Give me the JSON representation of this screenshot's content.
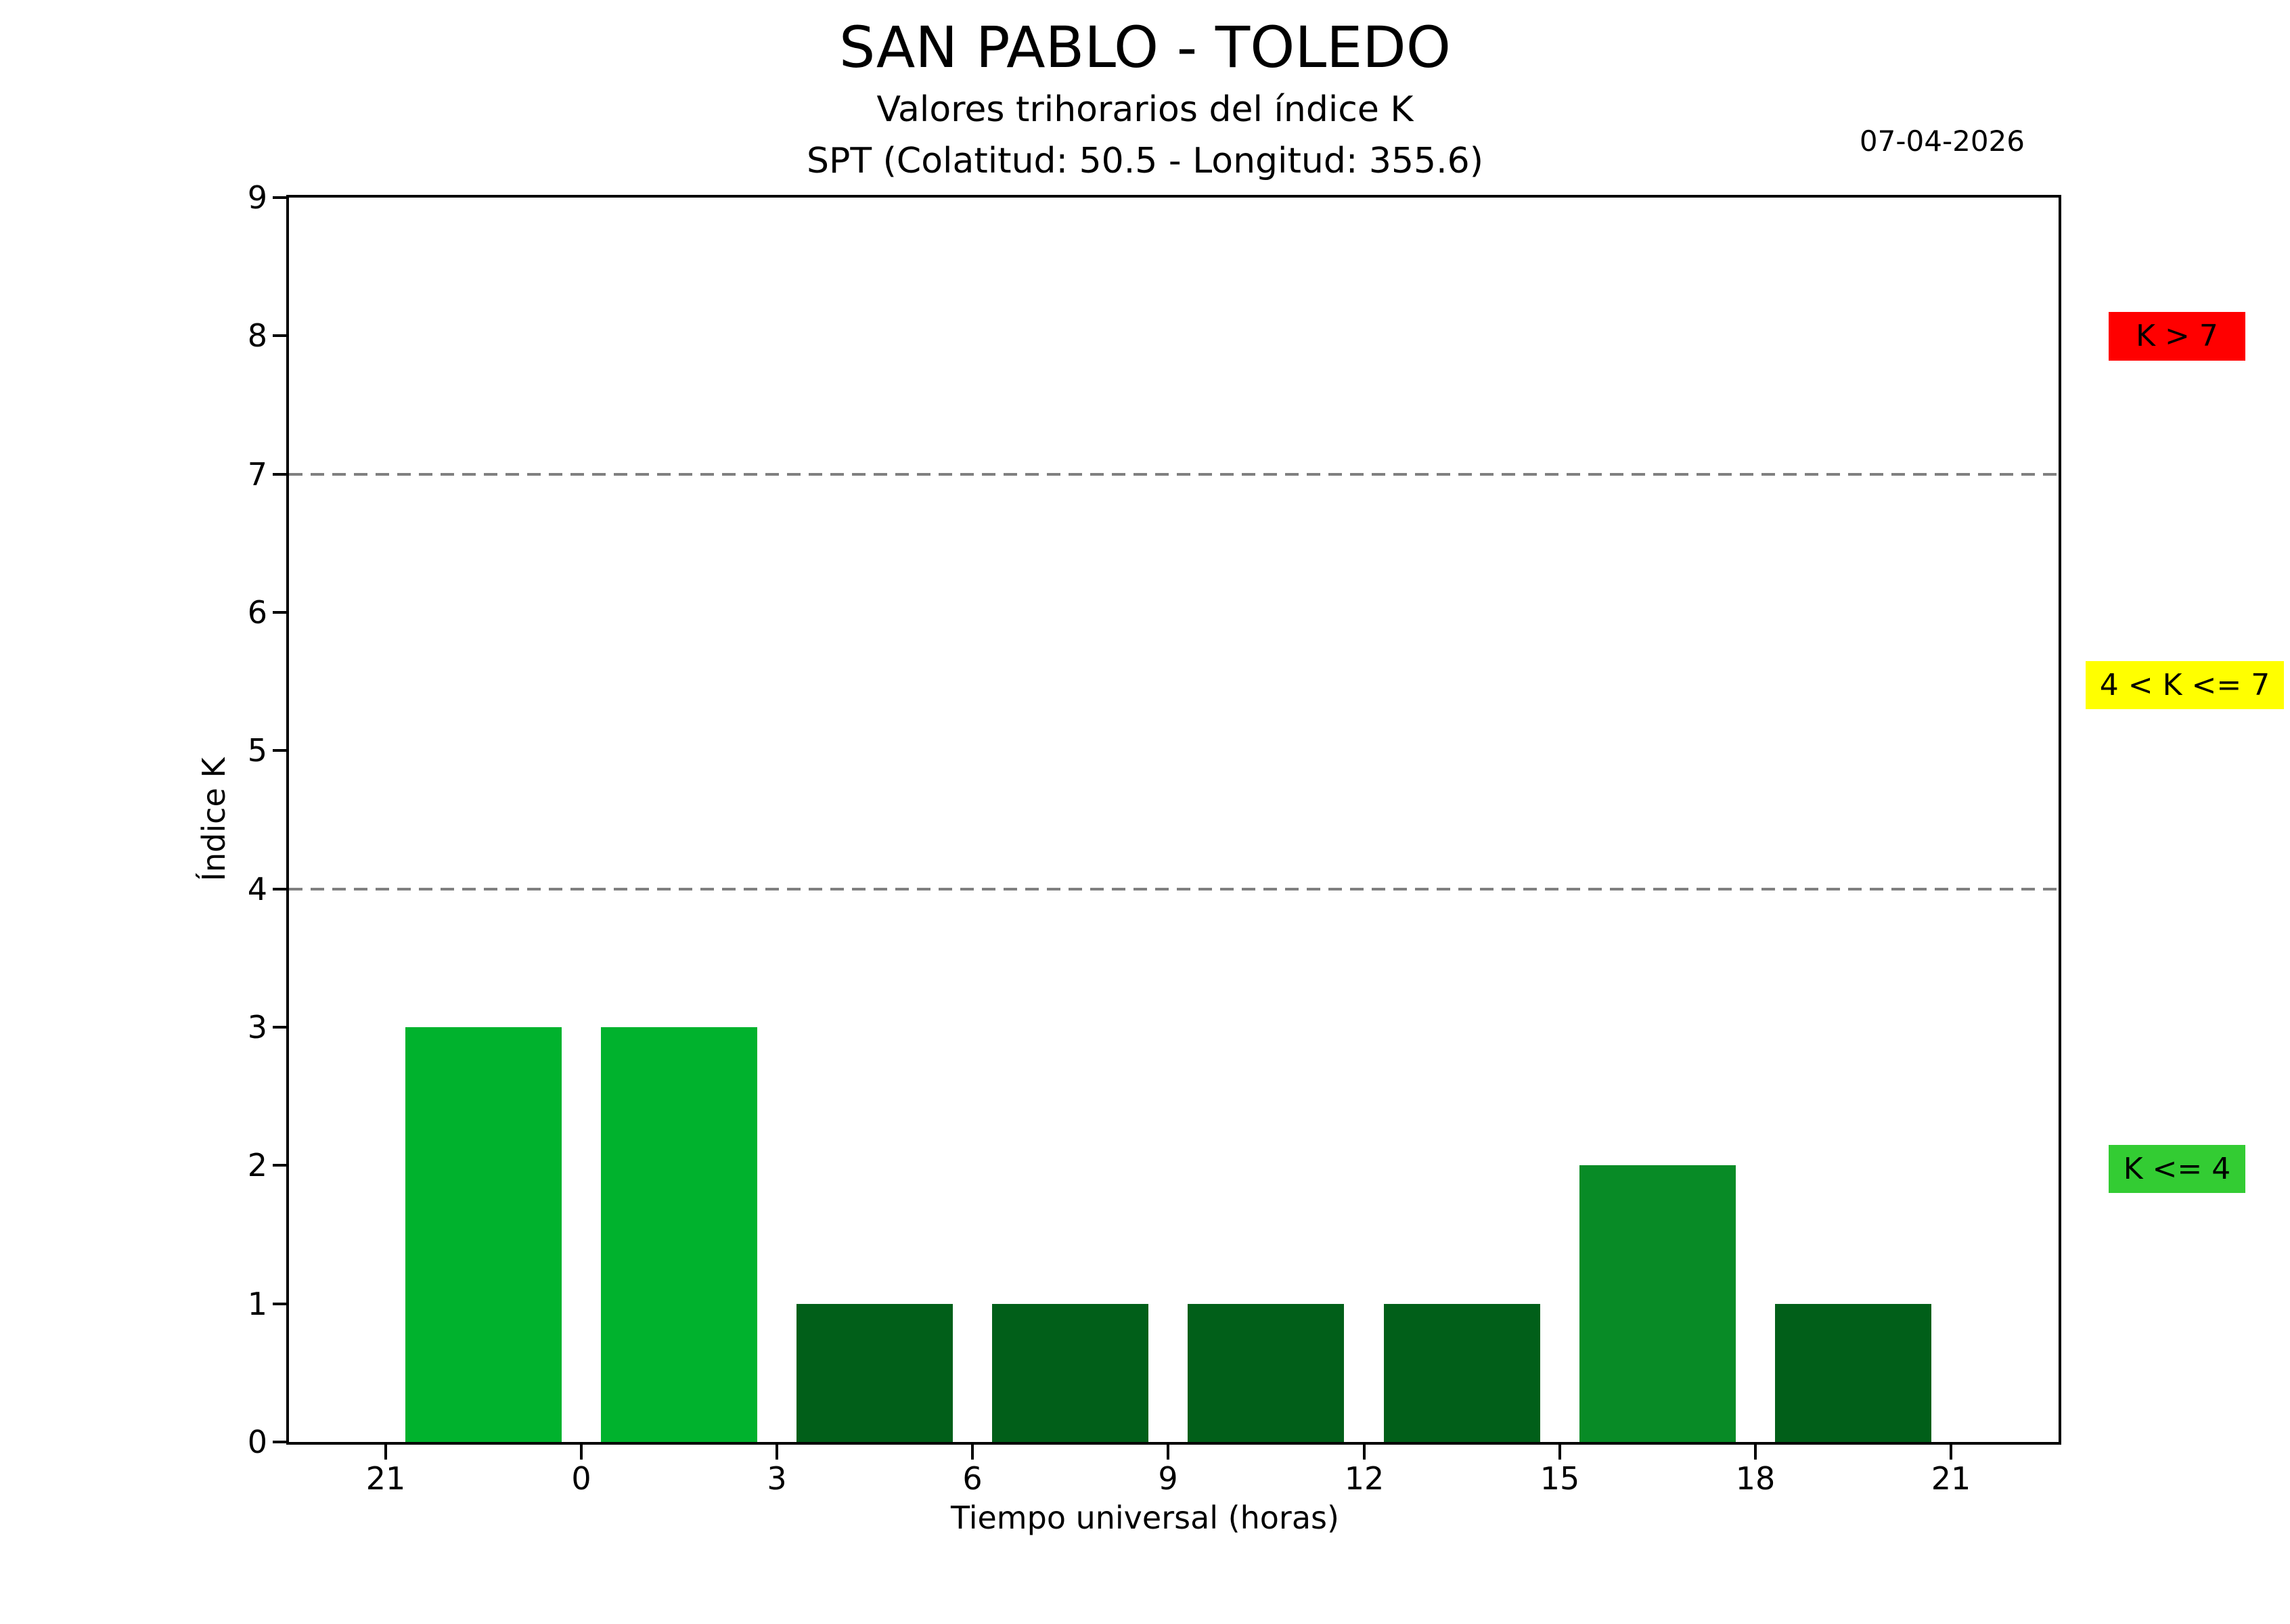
{
  "header": {
    "date": "07-04-2026"
  },
  "chart_data": {
    "type": "bar",
    "title": "SAN PABLO - TOLEDO",
    "subtitle": "Valores trihorarios del índice K",
    "station_info": "SPT (Colatitud: 50.5 - Longitud: 355.6)",
    "date": "07-04-2026",
    "xlabel": "Tiempo universal (horas)",
    "ylabel": "Índice K",
    "ylim": [
      0,
      9
    ],
    "y_ticks": [
      0,
      1,
      2,
      3,
      4,
      5,
      6,
      7,
      8,
      9
    ],
    "x_tick_labels": [
      "21",
      "0",
      "3",
      "6",
      "9",
      "12",
      "15",
      "18",
      "21"
    ],
    "categories": [
      "21-00",
      "00-03",
      "03-06",
      "06-09",
      "09-12",
      "12-15",
      "15-18",
      "18-21"
    ],
    "values": [
      3,
      3,
      1,
      1,
      1,
      1,
      2,
      1
    ],
    "bar_colors": [
      "#00b22d",
      "#00b22d",
      "#015f19",
      "#015f19",
      "#015f19",
      "#015f19",
      "#088b26",
      "#015f19"
    ],
    "threshold_lines": [
      {
        "value": 4,
        "color": "#808080",
        "style": "dashed"
      },
      {
        "value": 7,
        "color": "#808080",
        "style": "dashed"
      }
    ],
    "grid": "off",
    "legend_position": "right",
    "legend": [
      {
        "label": "K > 7",
        "color": "#ff0000"
      },
      {
        "label": "4 < K <= 7",
        "color": "#ffff00"
      },
      {
        "label": "K <= 4",
        "color": "#33cc33"
      }
    ],
    "colors": {
      "bar_k1": "#015f19",
      "bar_k2": "#088b26",
      "bar_k3": "#00b22d",
      "legend_red": "#ff0000",
      "legend_yellow": "#ffff00",
      "legend_green": "#33cc33",
      "threshold_gray": "#808080",
      "axis": "#000000"
    }
  }
}
